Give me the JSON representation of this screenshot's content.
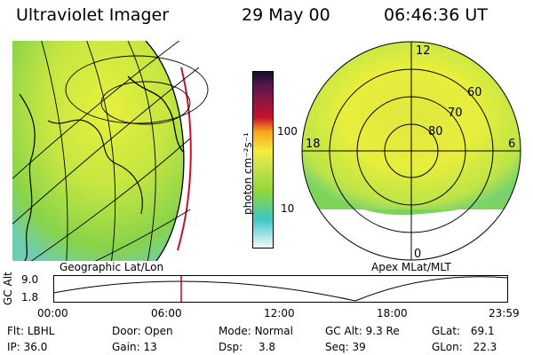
{
  "header": {
    "instrument": "Ultraviolet Imager",
    "date": "29 May 00",
    "time": "06:46:36 UT"
  },
  "left_panel": {
    "caption": "Geographic Lat/Lon"
  },
  "right_panel": {
    "caption": "Apex MLat/MLT",
    "mlt_labels": [
      "12",
      "18",
      "6",
      "0"
    ],
    "mlat_labels": [
      "60",
      "70",
      "80"
    ]
  },
  "colorbar": {
    "unit_label": "photon cm⁻²s⁻¹",
    "ticks": [
      "100",
      "10"
    ]
  },
  "timeline": {
    "axis_label": "GC Alt",
    "y_ticks": [
      "9.0",
      "1.8"
    ],
    "x_ticks": [
      "00:00",
      "06:00",
      "12:00",
      "18:00",
      "23:59"
    ],
    "current_time": "06:46"
  },
  "info": {
    "filter": {
      "label": "Flt:",
      "value": "LBHL"
    },
    "ip": {
      "label": "IP:",
      "value": "36.0"
    },
    "door": {
      "label": "Door:",
      "value": "Open"
    },
    "gain": {
      "label": "Gain:",
      "value": "13"
    },
    "mode": {
      "label": "Mode:",
      "value": "Normal"
    },
    "dsp": {
      "label": "Dsp:",
      "value": "3.8"
    },
    "gcalt": {
      "label": "GC Alt:",
      "value": "9.3 Re"
    },
    "seq": {
      "label": "Seq:",
      "value": "39"
    },
    "glat": {
      "label": "GLat:",
      "value": "69.1"
    },
    "glon": {
      "label": "GLon:",
      "value": "22.3"
    }
  },
  "colors": {
    "bar_top": "#1a0a2e",
    "bar_red": "#c8102e",
    "bar_orange": "#f7a21b",
    "bar_yellow": "#f4ee3c",
    "bar_green": "#8fd63a",
    "bar_cyan": "#3cc7c7",
    "bar_white": "#f4f8fb",
    "timeline_marker": "#d40000"
  }
}
